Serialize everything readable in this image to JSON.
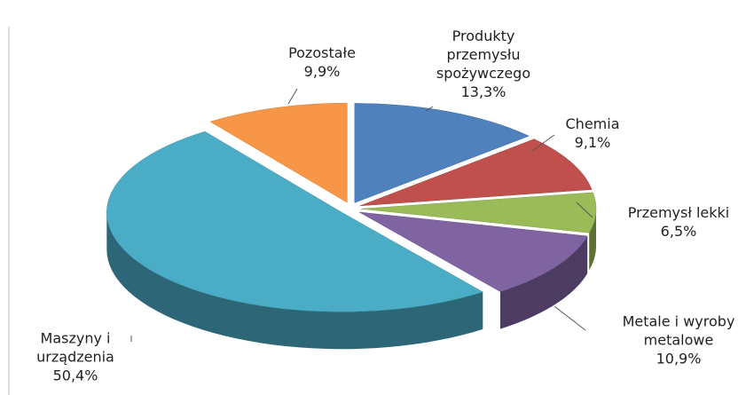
{
  "chart_data": {
    "type": "pie",
    "categories": [
      "Produkty przemysłu spożywczego",
      "Chemia",
      "Przemysł lekki",
      "Metale i wyroby metalowe",
      "Maszyny i urządzenia",
      "Pozostałe"
    ],
    "values": [
      13.3,
      9.1,
      6.5,
      10.9,
      50.4,
      9.9
    ],
    "value_labels": [
      "13,3%",
      "9,1%",
      "6,5%",
      "10,9%",
      "50,4%",
      "9,9%"
    ],
    "colors": [
      "#4f81bd",
      "#c0504d",
      "#9bbb59",
      "#8064a2",
      "#4bacc6",
      "#f79646"
    ]
  }
}
